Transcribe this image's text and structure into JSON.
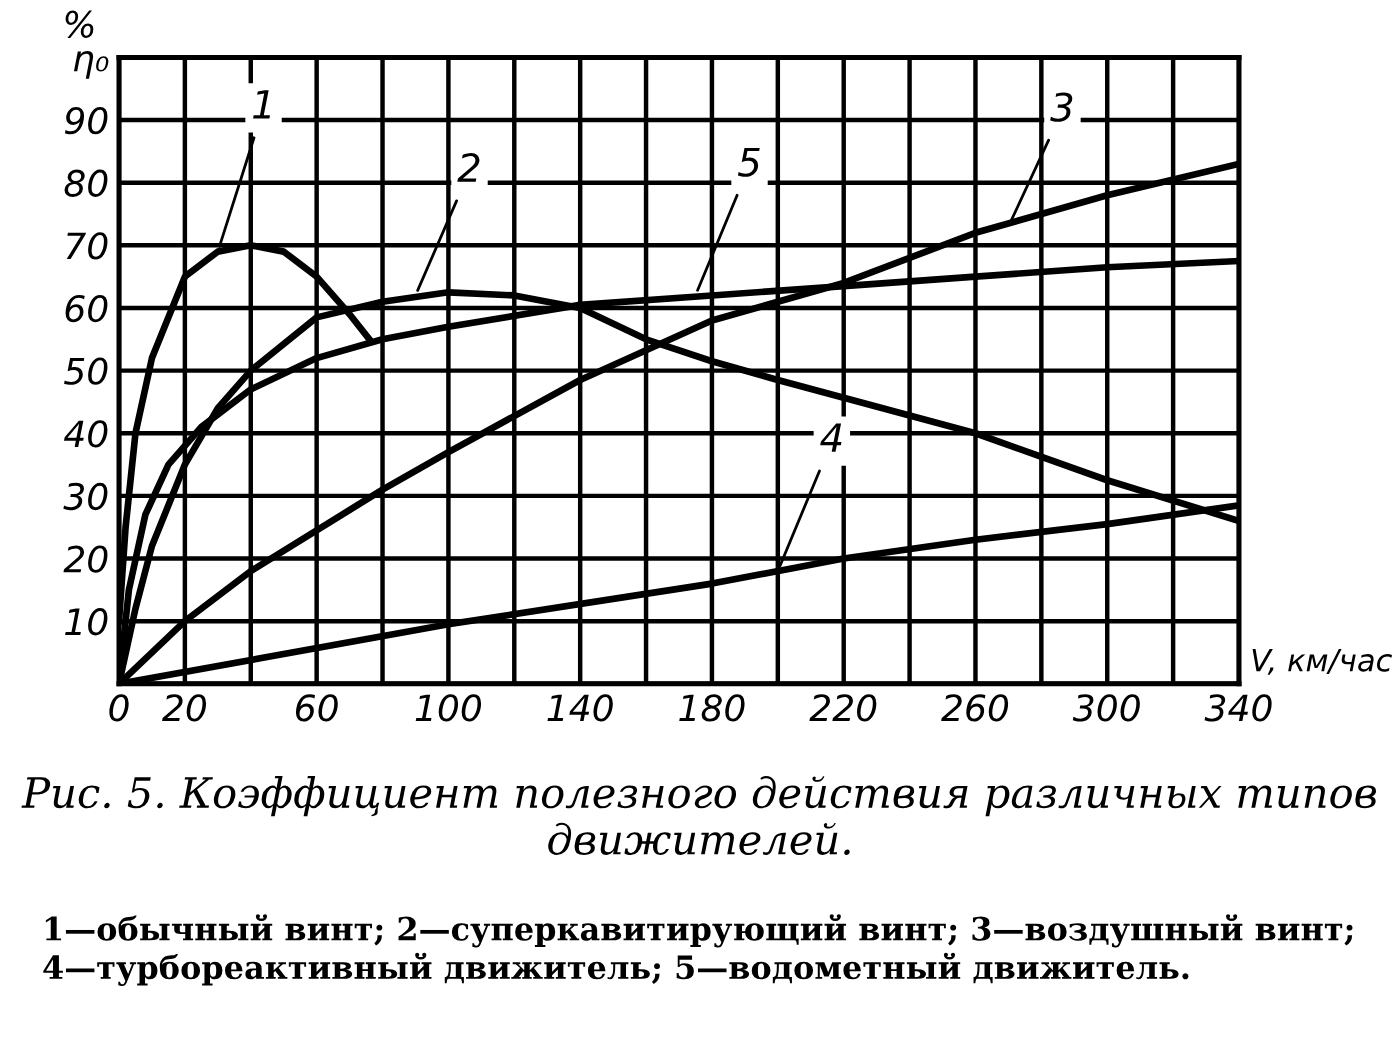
{
  "chart_data": {
    "type": "line",
    "title": "Рис. 5. Коэффициент полезного действия различных типов движителей.",
    "xlabel": "V, км/час",
    "ylabel": "%",
    "xlim": [
      0,
      340
    ],
    "ylim": [
      0,
      100
    ],
    "xticks": [
      0,
      20,
      {
        "value": 40,
        "label": null
      },
      60,
      {
        "value": 80,
        "label": null
      },
      100,
      {
        "value": 120,
        "label": null
      },
      140,
      {
        "value": 160,
        "label": null
      },
      180,
      {
        "value": 200,
        "label": null
      },
      220,
      {
        "value": 240,
        "label": null
      },
      260,
      {
        "value": 280,
        "label": null
      },
      300,
      {
        "value": 320,
        "label": null
      },
      340
    ],
    "yticks": [
      {
        "value": 0,
        "label": null
      },
      10,
      20,
      30,
      40,
      50,
      60,
      70,
      80,
      90,
      {
        "value": 100,
        "label": "η₀"
      }
    ],
    "grid": true,
    "legend": false,
    "marker": "none",
    "line_style": "solid",
    "series": [
      {
        "color": "#000000",
        "x": [
          0,
          2,
          5,
          10,
          20,
          30,
          40,
          50,
          60,
          70,
          76
        ],
        "values": [
          10,
          25,
          40,
          52,
          65,
          69,
          70,
          69,
          65,
          59,
          55
        ]
      },
      {
        "color": "#000000",
        "x": [
          0,
          5,
          10,
          20,
          30,
          40,
          60,
          80,
          100,
          120,
          140,
          160,
          180,
          200,
          260,
          300,
          340
        ],
        "values": [
          0,
          12,
          22,
          35,
          44,
          50,
          58.5,
          61,
          62.5,
          62,
          60,
          55,
          51.5,
          48.5,
          40,
          32.5,
          26
        ]
      },
      {
        "color": "#000000",
        "x": [
          0,
          20,
          40,
          80,
          100,
          140,
          180,
          220,
          260,
          300,
          340
        ],
        "values": [
          0,
          10,
          18,
          31,
          37,
          48.5,
          58,
          64,
          72,
          78,
          83
        ]
      },
      {
        "color": "#000000",
        "x": [
          0,
          100,
          180,
          220,
          260,
          300,
          340
        ],
        "values": [
          0,
          9.5,
          16,
          20,
          23,
          25.5,
          28.5
        ]
      },
      {
        "color": "#000000",
        "x": [
          0,
          3,
          8,
          15,
          25,
          40,
          60,
          80,
          100,
          140,
          180,
          220,
          260,
          300,
          340
        ],
        "values": [
          0,
          15,
          27,
          35,
          41,
          47,
          52,
          55,
          57,
          60.5,
          62,
          63.5,
          65,
          66.5,
          67.5
        ]
      }
    ],
    "annotations": [
      {
        "text": "1",
        "x": 30,
        "y": 69
      },
      {
        "text": "2",
        "x": 90,
        "y": 62
      },
      {
        "text": "3",
        "x": 270,
        "y": 73
      },
      {
        "text": "4",
        "x": 200,
        "y": 18
      },
      {
        "text": "5",
        "x": 175,
        "y": 62
      },
      "1—обычный винт; 2—суперкавитирующий винт; 3—воздушный винт; 4—турбореактивный движитель; 5—водометный движитель."
    ]
  }
}
